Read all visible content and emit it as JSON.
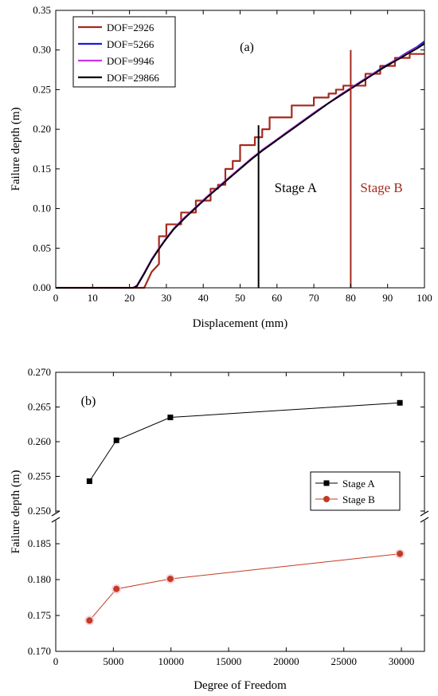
{
  "chart_data": [
    {
      "type": "line",
      "panel_label": "(a)",
      "xlabel": "Displacement (mm)",
      "ylabel": "Failure depth (m)",
      "xlim": [
        0,
        100
      ],
      "ylim": [
        0,
        0.35
      ],
      "xticks": [
        "0",
        "10",
        "20",
        "30",
        "40",
        "50",
        "60",
        "70",
        "80",
        "90",
        "100"
      ],
      "yticks": [
        "0.00",
        "0.05",
        "0.10",
        "0.15",
        "0.20",
        "0.25",
        "0.30",
        "0.35"
      ],
      "legend_position": "top-left",
      "series": [
        {
          "name": "DOF=2926",
          "color": "#a52a1e",
          "x": [
            0,
            22,
            24,
            26,
            26,
            28,
            28,
            30,
            30,
            34,
            34,
            38,
            38,
            42,
            42,
            44,
            44,
            46,
            46,
            48,
            48,
            50,
            50,
            54,
            54,
            56,
            56,
            58,
            58,
            60,
            60,
            64,
            64,
            66,
            66,
            70,
            70,
            74,
            74,
            76,
            76,
            78,
            78,
            80,
            80,
            84,
            84,
            88,
            88,
            92,
            92,
            96,
            96,
            100
          ],
          "y": [
            0,
            0,
            0,
            0.02,
            0.02,
            0.03,
            0.065,
            0.065,
            0.08,
            0.08,
            0.095,
            0.095,
            0.11,
            0.11,
            0.125,
            0.125,
            0.13,
            0.13,
            0.15,
            0.15,
            0.16,
            0.16,
            0.18,
            0.18,
            0.19,
            0.19,
            0.2,
            0.2,
            0.215,
            0.215,
            0.215,
            0.215,
            0.23,
            0.23,
            0.23,
            0.23,
            0.24,
            0.24,
            0.245,
            0.245,
            0.25,
            0.25,
            0.255,
            0.255,
            0.255,
            0.255,
            0.27,
            0.27,
            0.28,
            0.28,
            0.29,
            0.29,
            0.295,
            0.295
          ]
        },
        {
          "name": "DOF=5266",
          "color": "#1a1ad6",
          "x": [
            0,
            21,
            22,
            24,
            26,
            28,
            30,
            32,
            35,
            38,
            41,
            44,
            47,
            50,
            53,
            56,
            59,
            62,
            65,
            68,
            71,
            74,
            77,
            80,
            83,
            86,
            89,
            92,
            95,
            98,
            100
          ],
          "y": [
            0,
            0,
            0.002,
            0.018,
            0.035,
            0.05,
            0.062,
            0.074,
            0.088,
            0.101,
            0.114,
            0.127,
            0.139,
            0.151,
            0.162,
            0.173,
            0.183,
            0.194,
            0.204,
            0.214,
            0.224,
            0.233,
            0.243,
            0.252,
            0.261,
            0.27,
            0.279,
            0.287,
            0.296,
            0.304,
            0.311
          ]
        },
        {
          "name": "DOF=9946",
          "color": "#cc33ee",
          "x": [
            0,
            21,
            22,
            24,
            26,
            28,
            30,
            32,
            35,
            38,
            41,
            44,
            47,
            50,
            53,
            56,
            59,
            62,
            65,
            68,
            71,
            74,
            77,
            80,
            83,
            86,
            89,
            92,
            95,
            98,
            100
          ],
          "y": [
            0,
            0,
            0.003,
            0.019,
            0.036,
            0.05,
            0.063,
            0.075,
            0.089,
            0.102,
            0.115,
            0.127,
            0.139,
            0.151,
            0.163,
            0.174,
            0.184,
            0.194,
            0.204,
            0.214,
            0.224,
            0.233,
            0.243,
            0.252,
            0.261,
            0.27,
            0.278,
            0.287,
            0.295,
            0.303,
            0.308
          ]
        },
        {
          "name": "DOF=29866",
          "color": "#000000",
          "x": [
            0,
            21,
            22,
            24,
            26,
            28,
            30,
            32,
            35,
            38,
            41,
            44,
            47,
            50,
            53,
            56,
            59,
            62,
            65,
            68,
            71,
            74,
            77,
            80,
            83,
            86,
            89,
            92,
            95,
            98,
            100
          ],
          "y": [
            0,
            0,
            0.002,
            0.018,
            0.035,
            0.049,
            0.062,
            0.074,
            0.088,
            0.101,
            0.114,
            0.126,
            0.138,
            0.15,
            0.162,
            0.173,
            0.183,
            0.193,
            0.203,
            0.213,
            0.223,
            0.233,
            0.242,
            0.251,
            0.26,
            0.269,
            0.278,
            0.286,
            0.294,
            0.302,
            0.308
          ]
        }
      ],
      "vertical_markers": [
        {
          "label": "Stage A",
          "x": 55,
          "y_top": 0.205,
          "color": "#000000"
        },
        {
          "label": "Stage B",
          "x": 80,
          "y_top": 0.3,
          "color": "#a52a1e"
        }
      ]
    },
    {
      "type": "line",
      "panel_label": "(b)",
      "xlabel": "Degree of Freedom",
      "ylabel": "Failure depth (m)",
      "xlim": [
        0,
        32000
      ],
      "xticks": [
        "0",
        "5000",
        "10000",
        "15000",
        "20000",
        "25000",
        "30000"
      ],
      "broken_y_axis": true,
      "upper_ylim": [
        0.25,
        0.27
      ],
      "upper_yticks": [
        "0.250",
        "0.255",
        "0.260",
        "0.265",
        "0.270"
      ],
      "lower_ylim": [
        0.17,
        0.188
      ],
      "lower_yticks": [
        "0.170",
        "0.175",
        "0.180",
        "0.185"
      ],
      "legend_position": "right",
      "series": [
        {
          "name": "Stage A",
          "color": "#000000",
          "marker": "square",
          "x": [
            2926,
            5266,
            9946,
            29866
          ],
          "y": [
            0.2543,
            0.2602,
            0.2635,
            0.2656
          ]
        },
        {
          "name": "Stage B",
          "color": "#c23b22",
          "marker": "circle",
          "x": [
            2926,
            5266,
            9946,
            29866
          ],
          "y": [
            0.1743,
            0.1787,
            0.1801,
            0.1836
          ]
        }
      ]
    }
  ]
}
